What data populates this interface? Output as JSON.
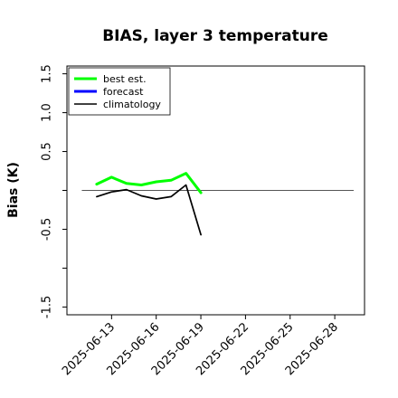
{
  "chart_data": {
    "type": "line",
    "title": "BIAS, layer 3 temperature",
    "ylabel": "Bias (K)",
    "xlabel": "",
    "xlim": [
      "2025-06-10",
      "2025-06-30"
    ],
    "ylim": [
      -1.6,
      1.6
    ],
    "yticks": [
      -1.5,
      -1.0,
      -0.5,
      0.0,
      0.5,
      1.0,
      1.5
    ],
    "ytick_labels": [
      "-1.5",
      "",
      "-0.5",
      "",
      "0.5",
      "1.0",
      "1.5"
    ],
    "xticks": [
      "2025-06-13",
      "2025-06-16",
      "2025-06-19",
      "2025-06-22",
      "2025-06-25",
      "2025-06-28"
    ],
    "highlight_tick": "2025-06-19",
    "highlight_color": "#228B22",
    "reference_line": 0.0,
    "legend": {
      "placement": "upper-left",
      "entries": [
        {
          "label": "best est.",
          "color": "#00ff00",
          "width": 3
        },
        {
          "label": "forecast",
          "color": "#0000ff",
          "width": 3
        },
        {
          "label": "climatology",
          "color": "#000000",
          "width": 1.5
        }
      ]
    },
    "series": [
      {
        "name": "best est.",
        "color": "#00ff00",
        "x": [
          "2025-06-12",
          "2025-06-13",
          "2025-06-14",
          "2025-06-15",
          "2025-06-16",
          "2025-06-17",
          "2025-06-18",
          "2025-06-19"
        ],
        "y": [
          0.08,
          0.17,
          0.09,
          0.07,
          0.11,
          0.13,
          0.22,
          -0.03
        ]
      },
      {
        "name": "forecast",
        "color": "#0000ff",
        "x": [],
        "y": []
      },
      {
        "name": "climatology",
        "color": "#000000",
        "x": [
          "2025-06-12",
          "2025-06-13",
          "2025-06-14",
          "2025-06-15",
          "2025-06-16",
          "2025-06-17",
          "2025-06-18",
          "2025-06-19"
        ],
        "y": [
          -0.08,
          -0.02,
          0.01,
          -0.07,
          -0.11,
          -0.08,
          0.07,
          -0.57
        ]
      }
    ]
  }
}
